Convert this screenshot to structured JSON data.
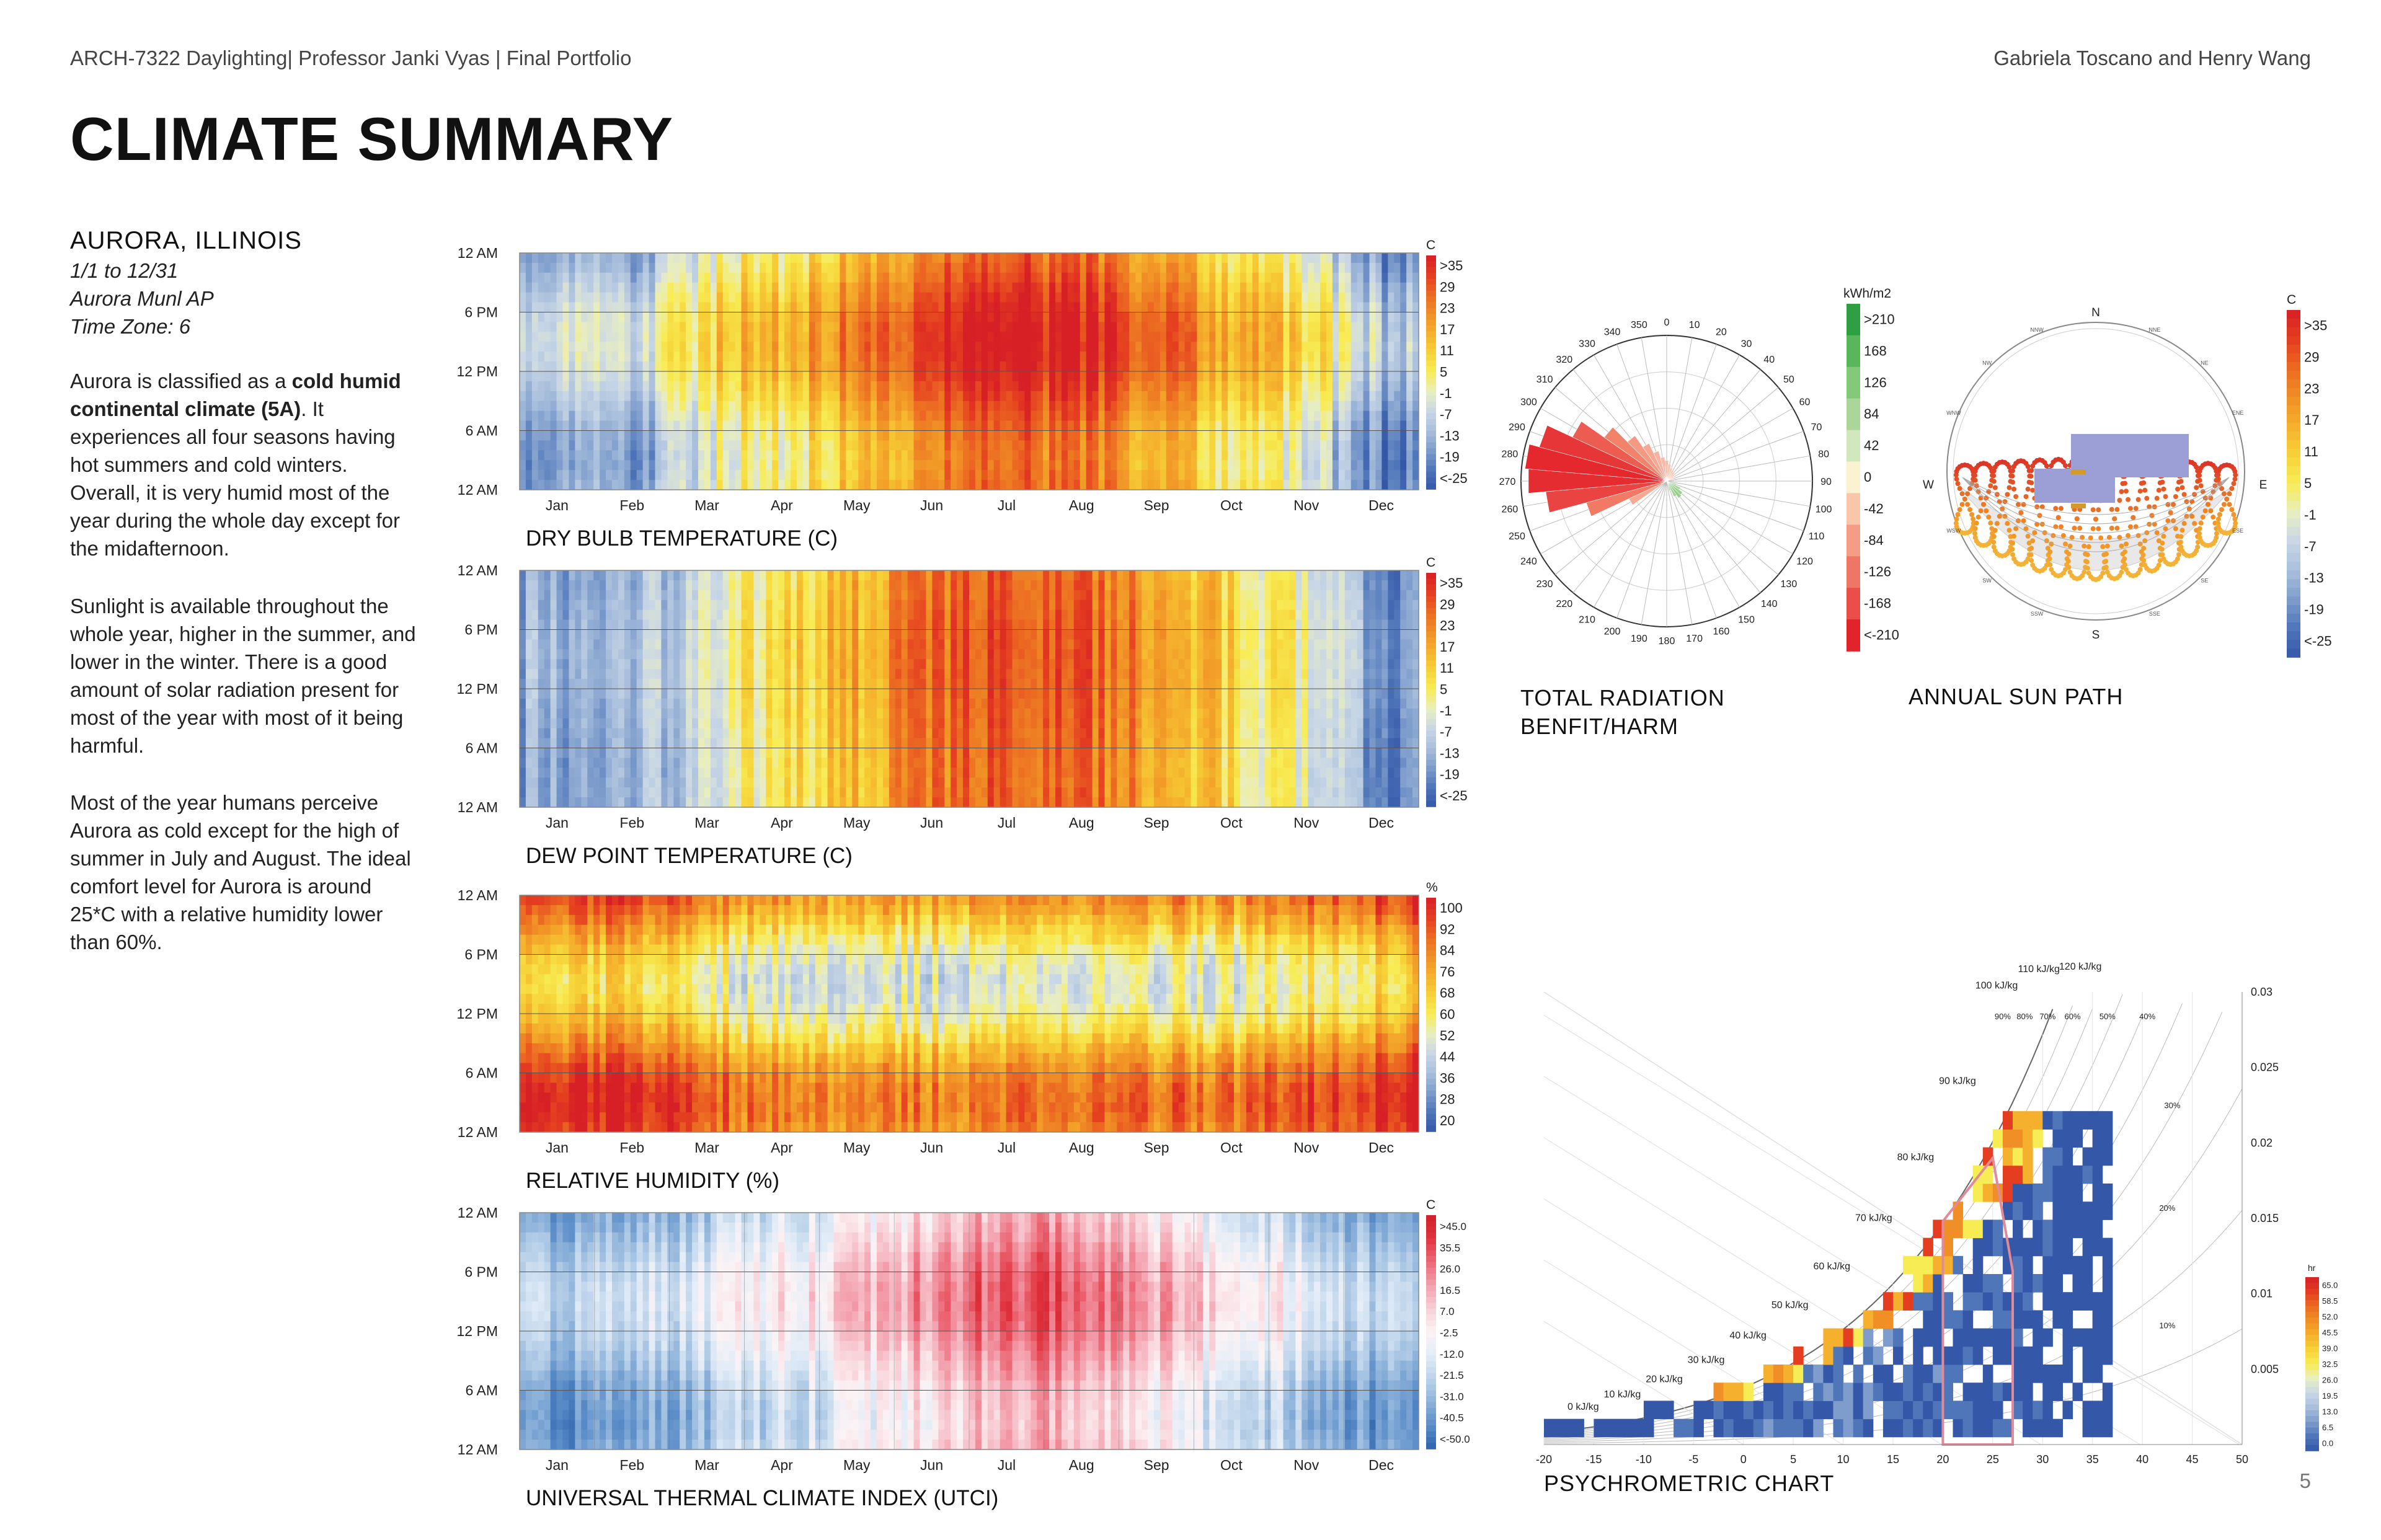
{
  "header": {
    "left": "ARCH-7322 Daylighting| Professor Janki Vyas | Final Portfolio",
    "right": "Gabriela Toscano and Henry Wang"
  },
  "page_title": "CLIMATE SUMMARY",
  "location": {
    "name": "AURORA, ILLINOIS",
    "dates": "1/1 to 12/31",
    "station": "Aurora Munl AP",
    "timezone": "Time Zone: 6"
  },
  "paragraphs": {
    "p1_a": "Aurora is classified as a ",
    "p1_b": "cold humid continental climate (5A)",
    "p1_c": ". It experiences all four seasons having hot summers and cold winters. Overall, it is very humid most of the year during the whole day except for the midafternoon.",
    "p2": "Sunlight is available throughout the whole year, higher in the summer, and lower in the winter. There is a good amount of solar radiation present for most of the year with most of it being harmful.",
    "p3": "Most of the year humans perceive Aurora as cold except for the high of summer in July and August. The ideal comfort level for Aurora is around 25*C with a relative humidity lower than 60%."
  },
  "page_number": "5",
  "colors": {
    "ramp": [
      "#3557a8",
      "#4f76b9",
      "#7e9dcc",
      "#a9bfdc",
      "#c9d7e6",
      "#e9eec0",
      "#f8ec55",
      "#f6d237",
      "#f5b02d",
      "#f08f25",
      "#ec6a22",
      "#e43d20",
      "#d71f26"
    ],
    "utci": [
      "#2e63ad",
      "#5b8dc8",
      "#8db2da",
      "#bcd3ea",
      "#e2ecf7",
      "#fbf3f5",
      "#f8cfd6",
      "#f3a0ad",
      "#ec6876",
      "#e0333e",
      "#d11f2a"
    ],
    "radiation": [
      "#2ea043",
      "#59b65b",
      "#84c879",
      "#aad69a",
      "#d0e8bb",
      "#fbf3d0",
      "#f8c6a8",
      "#f49d84",
      "#ef7667",
      "#ea4d4a",
      "#e3232b"
    ]
  },
  "chart_data": [
    {
      "id": "dry_bulb",
      "type": "heatmap",
      "title": "DRY BULB TEMPERATURE (C)",
      "x_ticks": [
        "Jan",
        "Feb",
        "Mar",
        "Apr",
        "May",
        "Jun",
        "Jul",
        "Aug",
        "Sep",
        "Oct",
        "Nov",
        "Dec"
      ],
      "y_ticks": [
        "12 AM",
        "6 PM",
        "12 PM",
        "6 AM",
        "12 AM"
      ],
      "legend_unit": "C",
      "legend_labels": [
        ">35",
        "29",
        "23",
        "17",
        "11",
        "5",
        "-1",
        "-7",
        "-13",
        "-19",
        "<-25"
      ],
      "monthly_level": [
        0.22,
        0.26,
        0.5,
        0.58,
        0.7,
        0.86,
        0.92,
        0.88,
        0.75,
        0.58,
        0.46,
        0.18
      ]
    },
    {
      "id": "dew_point",
      "type": "heatmap",
      "title": "DEW POINT TEMPERATURE (C)",
      "x_ticks": [
        "Jan",
        "Feb",
        "Mar",
        "Apr",
        "May",
        "Jun",
        "Jul",
        "Aug",
        "Sep",
        "Oct",
        "Nov",
        "Dec"
      ],
      "y_ticks": [
        "12 AM",
        "6 PM",
        "12 PM",
        "6 AM",
        "12 AM"
      ],
      "legend_unit": "C",
      "legend_labels": [
        ">35",
        "29",
        "23",
        "17",
        "11",
        "5",
        "-1",
        "-7",
        "-13",
        "-19",
        "<-25"
      ],
      "monthly_level": [
        0.2,
        0.22,
        0.4,
        0.52,
        0.66,
        0.82,
        0.86,
        0.84,
        0.72,
        0.55,
        0.42,
        0.14
      ]
    },
    {
      "id": "relative_humidity",
      "type": "heatmap",
      "title": "RELATIVE HUMIDITY (%)",
      "x_ticks": [
        "Jan",
        "Feb",
        "Mar",
        "Apr",
        "May",
        "Jun",
        "Jul",
        "Aug",
        "Sep",
        "Oct",
        "Nov",
        "Dec"
      ],
      "y_ticks": [
        "12 AM",
        "6 PM",
        "12 PM",
        "6 AM",
        "12 AM"
      ],
      "legend_unit": "%",
      "legend_labels": [
        "100",
        "92",
        "84",
        "76",
        "68",
        "60",
        "52",
        "44",
        "36",
        "28",
        "20"
      ],
      "monthly_level": [
        0.78,
        0.76,
        0.64,
        0.56,
        0.54,
        0.58,
        0.6,
        0.62,
        0.62,
        0.6,
        0.7,
        0.78
      ]
    },
    {
      "id": "utci",
      "type": "heatmap",
      "title": "UNIVERSAL THERMAL CLIMATE INDEX (UTCI)",
      "x_ticks": [
        "Jan",
        "Feb",
        "Mar",
        "Apr",
        "May",
        "Jun",
        "Jul",
        "Aug",
        "Sep",
        "Oct",
        "Nov",
        "Dec"
      ],
      "y_ticks": [
        "12 AM",
        "6 PM",
        "12 PM",
        "6 AM",
        "12 AM"
      ],
      "legend_unit": "C",
      "legend_labels": [
        ">45.0",
        "35.5",
        "26.0",
        "16.5",
        "7.0",
        "-2.5",
        "-12.0",
        "-21.5",
        "-31.0",
        "-40.5",
        "<-50.0"
      ],
      "monthly_level": [
        0.2,
        0.24,
        0.36,
        0.42,
        0.5,
        0.66,
        0.76,
        0.72,
        0.58,
        0.44,
        0.36,
        0.18
      ]
    },
    {
      "id": "radiation_rose",
      "type": "radar",
      "title": "TOTAL RADIATION",
      "subtitle": "BENFIT/HARM",
      "legend_unit": "kWh/m2",
      "legend_labels": [
        ">210",
        "168",
        "126",
        "84",
        "42",
        "0",
        "-42",
        "-84",
        "-126",
        "-168",
        "<-210"
      ],
      "angle_labels": [
        "0",
        "10",
        "20",
        "30",
        "40",
        "50",
        "60",
        "70",
        "80",
        "90",
        "100",
        "110",
        "120",
        "130",
        "140",
        "150",
        "160",
        "170",
        "180",
        "190",
        "200",
        "210",
        "220",
        "230",
        "240",
        "250",
        "260",
        "270",
        "280",
        "290",
        "300",
        "310",
        "320",
        "330",
        "340",
        "350"
      ],
      "harm_petals": [
        {
          "bearing": 240,
          "value": 60
        },
        {
          "bearing": 250,
          "value": 120
        },
        {
          "bearing": 260,
          "value": 175
        },
        {
          "bearing": 270,
          "value": 200
        },
        {
          "bearing": 280,
          "value": 205
        },
        {
          "bearing": 290,
          "value": 190
        },
        {
          "bearing": 300,
          "value": 150
        },
        {
          "bearing": 310,
          "value": 110
        },
        {
          "bearing": 320,
          "value": 80
        },
        {
          "bearing": 330,
          "value": 60
        },
        {
          "bearing": 340,
          "value": 45
        },
        {
          "bearing": 350,
          "value": 35
        },
        {
          "bearing": 0,
          "value": 30
        },
        {
          "bearing": 10,
          "value": 25
        },
        {
          "bearing": 20,
          "value": 20
        },
        {
          "bearing": 30,
          "value": 18
        },
        {
          "bearing": 40,
          "value": 16
        },
        {
          "bearing": 50,
          "value": 14
        },
        {
          "bearing": 60,
          "value": 12
        },
        {
          "bearing": 70,
          "value": 10
        }
      ],
      "benefit_petals": [
        {
          "bearing": 110,
          "value": 15
        },
        {
          "bearing": 120,
          "value": 22
        },
        {
          "bearing": 130,
          "value": 28
        },
        {
          "bearing": 140,
          "value": 30
        },
        {
          "bearing": 150,
          "value": 25
        },
        {
          "bearing": 160,
          "value": 15
        }
      ]
    },
    {
      "id": "sun_path",
      "type": "sun-path",
      "title": "ANNUAL SUN PATH",
      "legend_unit": "C",
      "legend_labels": [
        ">35",
        "29",
        "23",
        "17",
        "11",
        "5",
        "-1",
        "-7",
        "-13",
        "-19",
        "<-25"
      ],
      "cardinals": [
        "N",
        "E",
        "S",
        "W"
      ],
      "intercardinals": [
        "NNW",
        "NNE",
        "NW",
        "NE",
        "WNW",
        "ENE",
        "WSW",
        "ESE",
        "SW",
        "SE",
        "SSW",
        "SSE"
      ]
    },
    {
      "id": "psychrometric",
      "type": "scatter",
      "title": "PSYCHROMETRIC CHART",
      "xlabel": "",
      "x_ticks": [
        "-20",
        "-15",
        "-10",
        "-5",
        "0",
        "5",
        "10",
        "15",
        "20",
        "25",
        "30",
        "35",
        "40",
        "45",
        "50"
      ],
      "xlim": [
        -20,
        50
      ],
      "y_ticks": [
        "0.03",
        "0.025",
        "0.02",
        "0.015",
        "0.01",
        "0.005"
      ],
      "ylim": [
        0,
        0.03
      ],
      "enthalpy_labels": [
        "0 kJ/kg",
        "10 kJ/kg",
        "20 kJ/kg",
        "30 kJ/kg",
        "40 kJ/kg",
        "50 kJ/kg",
        "60 kJ/kg",
        "70 kJ/kg",
        "80 kJ/kg",
        "90 kJ/kg",
        "100 kJ/kg",
        "110 kJ/kg",
        "120 kJ/kg"
      ],
      "rh_labels": [
        "90%",
        "80%",
        "70%",
        "60%",
        "50%",
        "40%",
        "30%",
        "20%",
        "10%"
      ],
      "legend_unit": "hr",
      "legend_labels": [
        "65.0",
        "58.5",
        "52.0",
        "45.5",
        "39.0",
        "32.5",
        "26.0",
        "19.5",
        "13.0",
        "6.5",
        "0.0"
      ]
    }
  ]
}
